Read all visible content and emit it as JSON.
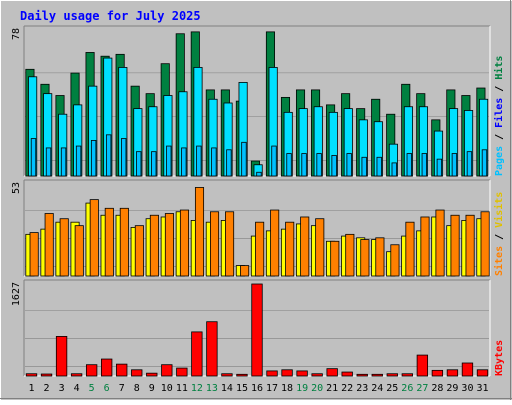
{
  "title": "Daily usage for July 2025",
  "chart_data": [
    {
      "type": "bar",
      "panel": "top",
      "ymax_label": "78",
      "ylim": [
        0,
        78
      ],
      "grid": true,
      "legend": {
        "placement": "right-vertical",
        "items": [
          "Pages",
          "Files",
          "Hits"
        ]
      },
      "categories": [
        "1",
        "2",
        "3",
        "4",
        "5",
        "6",
        "7",
        "8",
        "9",
        "10",
        "11",
        "12",
        "13",
        "14",
        "15",
        "16",
        "17",
        "18",
        "19",
        "20",
        "21",
        "22",
        "23",
        "24",
        "25",
        "26",
        "27",
        "28",
        "29",
        "30",
        "31"
      ],
      "series": [
        {
          "name": "Hits",
          "color": "#008040",
          "values": [
            57,
            49,
            43,
            55,
            66,
            64,
            65,
            48,
            44,
            60,
            76,
            77,
            46,
            46,
            40,
            8,
            77,
            42,
            46,
            46,
            38,
            44,
            36,
            41,
            33,
            49,
            44,
            30,
            46,
            43,
            47
          ]
        },
        {
          "name": "Files",
          "color": "#00e0ff",
          "values": [
            53,
            44,
            33,
            38,
            48,
            63,
            58,
            36,
            37,
            43,
            45,
            58,
            41,
            39,
            50,
            6,
            58,
            34,
            36,
            37,
            34,
            36,
            30,
            29,
            17,
            37,
            37,
            24,
            36,
            35,
            41
          ]
        },
        {
          "name": "Pages",
          "color": "#0000ff",
          "values": [
            20,
            15,
            15,
            16,
            19,
            22,
            20,
            13,
            13,
            16,
            15,
            16,
            15,
            14,
            18,
            2,
            16,
            12,
            12,
            12,
            11,
            12,
            10,
            10,
            7,
            12,
            12,
            9,
            12,
            13,
            14
          ]
        }
      ]
    },
    {
      "type": "bar",
      "panel": "middle",
      "ymax_label": "53",
      "ylim": [
        0,
        53
      ],
      "grid": true,
      "legend": {
        "placement": "right-vertical",
        "items": [
          "Sites",
          "Visits"
        ]
      },
      "categories": [
        "1",
        "2",
        "3",
        "4",
        "5",
        "6",
        "7",
        "8",
        "9",
        "10",
        "11",
        "12",
        "13",
        "14",
        "15",
        "16",
        "17",
        "18",
        "19",
        "20",
        "21",
        "22",
        "23",
        "24",
        "25",
        "26",
        "27",
        "28",
        "29",
        "30",
        "31"
      ],
      "series": [
        {
          "name": "Visits",
          "color": "#ffff00",
          "values": [
            24,
            27,
            31,
            31,
            42,
            35,
            35,
            28,
            33,
            34,
            37,
            32,
            31,
            32,
            6,
            23,
            26,
            27,
            30,
            29,
            20,
            23,
            22,
            21,
            14,
            23,
            26,
            34,
            29,
            32,
            33
          ]
        },
        {
          "name": "Sites",
          "color": "#ff8000",
          "values": [
            25,
            36,
            33,
            29,
            44,
            39,
            39,
            29,
            35,
            36,
            38,
            51,
            37,
            37,
            6,
            31,
            38,
            31,
            34,
            33,
            20,
            24,
            21,
            22,
            18,
            31,
            34,
            38,
            35,
            35,
            37
          ]
        }
      ]
    },
    {
      "type": "bar",
      "panel": "bottom",
      "ymax_label": "1627",
      "ylim": [
        0,
        1627
      ],
      "grid": true,
      "legend": {
        "placement": "right-vertical",
        "items": [
          "KBytes"
        ]
      },
      "categories": [
        "1",
        "2",
        "3",
        "4",
        "5",
        "6",
        "7",
        "8",
        "9",
        "10",
        "11",
        "12",
        "13",
        "14",
        "15",
        "16",
        "17",
        "18",
        "19",
        "20",
        "21",
        "22",
        "23",
        "24",
        "25",
        "26",
        "27",
        "28",
        "29",
        "30",
        "31"
      ],
      "series": [
        {
          "name": "KBytes",
          "color": "#ff0000",
          "values": [
            40,
            35,
            700,
            40,
            200,
            300,
            210,
            110,
            50,
            200,
            140,
            780,
            960,
            40,
            30,
            1627,
            90,
            110,
            90,
            40,
            130,
            70,
            30,
            30,
            40,
            40,
            370,
            100,
            110,
            230,
            110
          ]
        }
      ]
    }
  ],
  "weekend_days": [
    "5",
    "6",
    "12",
    "13",
    "19",
    "20",
    "26",
    "27"
  ],
  "colors": {
    "background": "#c0c0c0",
    "title_text": "#0000ff",
    "hits": "#008040",
    "files": "#00e0ff",
    "pages": "#00c0ff",
    "visits": "#ffff00",
    "sites": "#ff8000",
    "kbytes": "#ff0000",
    "weekday_label": "#000000",
    "weekend_label": "#008040"
  }
}
